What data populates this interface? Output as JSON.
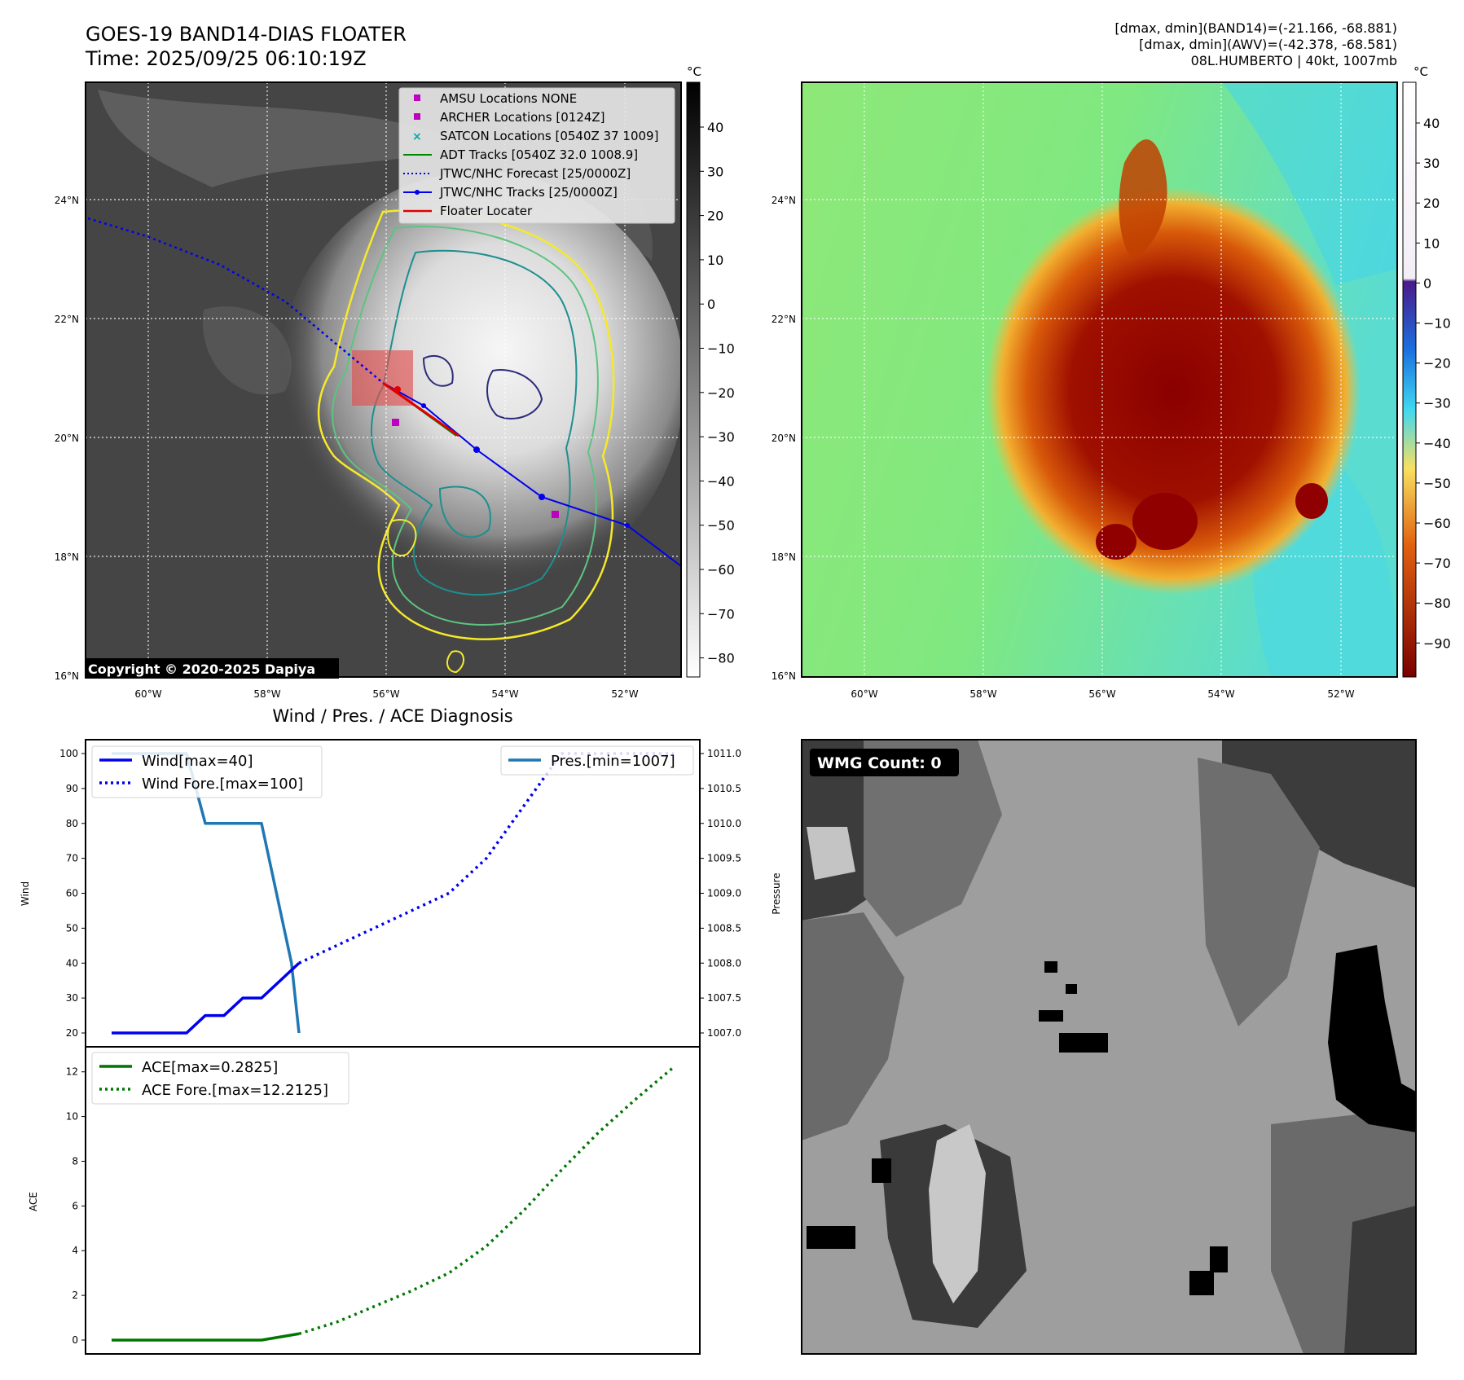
{
  "header": {
    "title_line1": "GOES-19 BAND14-DIAS FLOATER",
    "title_line2": "Time: 2025/09/25 06:10:19Z",
    "info_line1": "[dmax, dmin](BAND14)=(-21.166, -68.881)",
    "info_line2": "[dmax, dmin](AWV)=(-42.378, -68.581)",
    "info_line3": "08L.HUMBERTO | 40kt, 1007mb"
  },
  "copyright": "Copyright © 2020-2025 Dapiya",
  "colors": {
    "wind": "#0000ee",
    "pressure": "#1f77b4",
    "ace": "#007700",
    "legend_magenta": "#c000c0",
    "legend_teal": "#00aaaa",
    "adt_green": "#008800",
    "floater_red": "#e00000",
    "contour_yellow": "#f5e92a",
    "contour_green": "#5cc480",
    "contour_teal": "#1e8f8f",
    "contour_navy": "#2a2a7a"
  },
  "map": {
    "lat_labels": [
      "24°N",
      "22°N",
      "20°N",
      "18°N",
      "16°N"
    ],
    "lon_labels": [
      "60°W",
      "58°W",
      "56°W",
      "54°W",
      "52°W"
    ]
  },
  "legend": {
    "items": [
      {
        "label": "AMSU Locations NONE",
        "icon": "square-marker-icon"
      },
      {
        "label": "ARCHER Locations [0124Z]",
        "icon": "square-marker-icon"
      },
      {
        "label": "SATCON Locations [0540Z 37 1009]",
        "icon": "x-marker-icon"
      },
      {
        "label": "ADT Tracks [0540Z 32.0 1008.9]",
        "icon": "line-icon"
      },
      {
        "label": "JTWC/NHC Forecast [25/0000Z]",
        "icon": "dotted-line-icon"
      },
      {
        "label": "JTWC/NHC Tracks [25/0000Z]",
        "icon": "line-dot-icon"
      },
      {
        "label": "Floater Locater",
        "icon": "line-icon"
      }
    ]
  },
  "ir_colorbar": {
    "unit": "°C",
    "ticks": [
      "40",
      "30",
      "20",
      "10",
      "0",
      "−10",
      "−20",
      "−30",
      "−40",
      "−50",
      "−60",
      "−70",
      "−80"
    ]
  },
  "awv_colorbar": {
    "unit": "°C",
    "ticks": [
      "40",
      "30",
      "20",
      "10",
      "0",
      "−10",
      "−20",
      "−30",
      "−40",
      "−50",
      "−60",
      "−70",
      "−80",
      "−90"
    ]
  },
  "wmg_label": "WMG Count: 0",
  "chart_data": [
    {
      "type": "line",
      "title": "Wind / Pres. / ACE Diagnosis",
      "ylabel": "Wind",
      "ylabel_right": "Pressure",
      "ylim": [
        20,
        100
      ],
      "ylim_right": [
        1007.0,
        1011.0
      ],
      "y_ticks": [
        "100",
        "90",
        "80",
        "70",
        "60",
        "50",
        "40",
        "30",
        "20"
      ],
      "y_ticks_right": [
        "1011.0",
        "1010.5",
        "1010.0",
        "1009.5",
        "1009.0",
        "1008.5",
        "1008.0",
        "1007.5",
        "1007.0"
      ],
      "x": [
        0,
        1,
        2,
        3,
        4,
        5,
        6,
        7,
        8,
        9,
        10,
        11,
        12,
        13,
        14,
        15
      ],
      "series": [
        {
          "name": "Wind[max=40]",
          "style": "solid",
          "x": [
            0,
            2,
            2.5,
            3,
            3.5,
            4,
            5
          ],
          "values": [
            20,
            20,
            25,
            25,
            30,
            30,
            40
          ]
        },
        {
          "name": "Wind Fore.[max=100]",
          "style": "dotted",
          "x": [
            5,
            6,
            7,
            8,
            9,
            10,
            11,
            12,
            13,
            14,
            15
          ],
          "values": [
            40,
            45,
            50,
            55,
            60,
            70,
            85,
            100,
            100,
            100,
            100
          ]
        },
        {
          "name": "Pres.[min=1007]",
          "style": "solid",
          "axis": "right",
          "x": [
            0,
            2,
            2.5,
            3,
            4,
            4.4,
            4.8,
            5
          ],
          "values": [
            1011.0,
            1011.0,
            1010.0,
            1010.0,
            1010.0,
            1009.0,
            1008.0,
            1007.0
          ]
        }
      ]
    },
    {
      "type": "line",
      "ylabel": "ACE",
      "ylim": [
        0,
        12.5
      ],
      "y_ticks": [
        "12",
        "10",
        "8",
        "6",
        "4",
        "2",
        "0"
      ],
      "x": [
        0,
        1,
        2,
        3,
        4,
        5,
        6,
        7,
        8,
        9,
        10,
        11,
        12,
        13,
        14,
        15
      ],
      "series": [
        {
          "name": "ACE[max=0.2825]",
          "style": "solid",
          "x": [
            0,
            1,
            2,
            3,
            4,
            5
          ],
          "values": [
            0,
            0,
            0,
            0,
            0,
            0.2825
          ]
        },
        {
          "name": "ACE Fore.[max=12.2125]",
          "style": "dotted",
          "x": [
            5,
            6,
            7,
            8,
            9,
            10,
            11,
            12,
            13,
            14,
            15
          ],
          "values": [
            0.2825,
            0.8,
            1.5,
            2.2,
            3.0,
            4.2,
            5.8,
            7.6,
            9.3,
            10.8,
            12.2125
          ]
        }
      ]
    }
  ]
}
